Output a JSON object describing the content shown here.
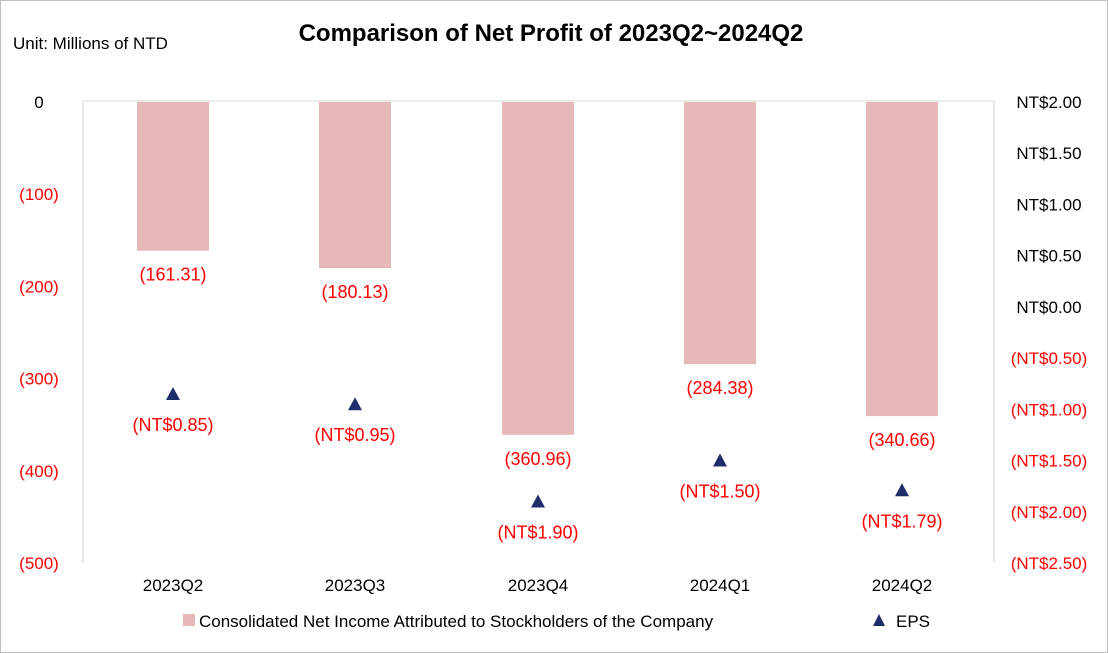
{
  "chart_data": {
    "type": "bar",
    "title": "Comparison of Net Profit of 2023Q2~2024Q2",
    "unit_label": "Unit: Millions of NTD",
    "categories": [
      "2023Q2",
      "2023Q3",
      "2023Q4",
      "2024Q1",
      "2024Q2"
    ],
    "series": [
      {
        "name": "Consolidated Net Income Attributed to Stockholders of the Company",
        "type": "bar",
        "axis": "left",
        "color": "#e6b8b7",
        "values": [
          -161.31,
          -180.13,
          -360.96,
          -284.38,
          -340.66
        ],
        "labels": [
          "(161.31)",
          "(180.13)",
          "(360.96)",
          "(284.38)",
          "(340.66)"
        ]
      },
      {
        "name": "EPS",
        "type": "scatter",
        "marker": "triangle",
        "axis": "right",
        "color": "#1f2d6b",
        "values": [
          -0.85,
          -0.95,
          -1.9,
          -1.5,
          -1.79
        ],
        "labels": [
          "(NT$0.85)",
          "(NT$0.95)",
          "(NT$1.90)",
          "(NT$1.50)",
          "(NT$1.79)"
        ]
      }
    ],
    "y_left": {
      "ylim": [
        -500,
        0
      ],
      "ticks": [
        0,
        -100,
        -200,
        -300,
        -400,
        -500
      ],
      "tick_labels": [
        "0",
        "(100)",
        "(200)",
        "(300)",
        "(400)",
        "(500)"
      ],
      "positive_color": "#000000",
      "negative_color": "#ff0000"
    },
    "y_right": {
      "ylim": [
        -2.5,
        2.0
      ],
      "ticks": [
        2.0,
        1.5,
        1.0,
        0.5,
        0.0,
        -0.5,
        -1.0,
        -1.5,
        -2.0,
        -2.5
      ],
      "tick_labels": [
        "NT$2.00",
        "NT$1.50",
        "NT$1.00",
        "NT$0.50",
        "NT$0.00",
        "(NT$0.50)",
        "(NT$1.00)",
        "(NT$1.50)",
        "(NT$2.00)",
        "(NT$2.50)"
      ],
      "positive_color": "#000000",
      "negative_color": "#ff0000"
    },
    "label_color": "#ff0000",
    "grid": false,
    "legend_position": "bottom"
  }
}
